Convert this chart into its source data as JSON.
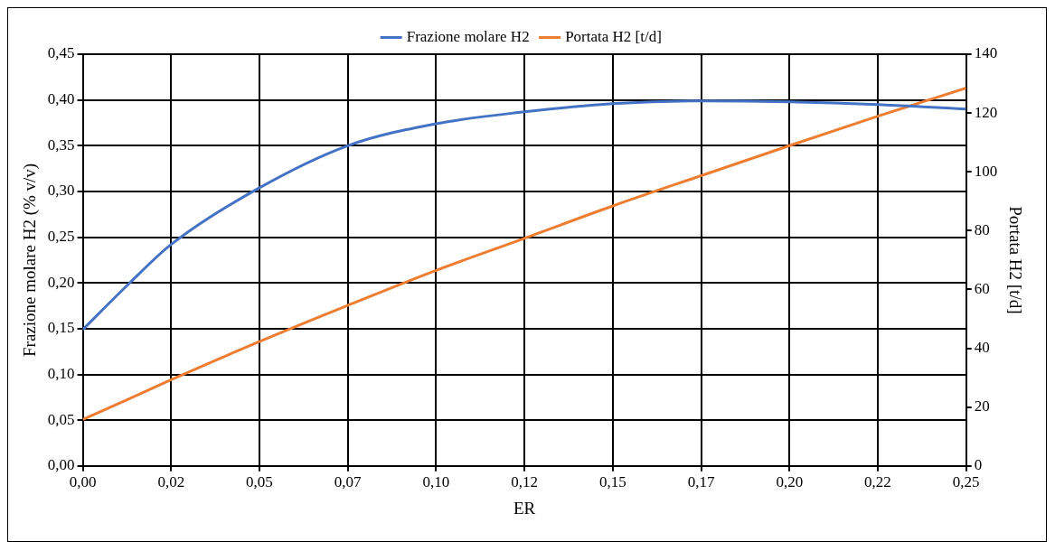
{
  "chart_data": {
    "type": "line",
    "xlabel": "ER",
    "ylabel": "Frazione molare H2 (% v/v)",
    "y2label": "Portata H2 [t/d]",
    "x": [
      0,
      0.0125,
      0.025,
      0.05,
      0.075,
      0.1,
      0.125,
      0.15,
      0.175,
      0.2,
      0.225,
      0.25
    ],
    "series": [
      {
        "name": "Frazione molare H2",
        "color": "#4472c4",
        "values": [
          0.149,
          0.197,
          0.242,
          0.304,
          0.35,
          0.374,
          0.387,
          0.396,
          0.399,
          0.398,
          0.395,
          0.39
        ]
      },
      {
        "name": "Portata H2 [t/d]",
        "color": "#ed7d31",
        "axis": "y2",
        "values": [
          15.8,
          22.5,
          29.3,
          42.3,
          54.6,
          66.5,
          77.4,
          88.4,
          98.7,
          108.9,
          118.9,
          128.5
        ]
      }
    ],
    "xlim": [
      0,
      0.25
    ],
    "xticks": [
      {
        "value": 0,
        "label": "0,00"
      },
      {
        "value": 0.025,
        "label": "0,02"
      },
      {
        "value": 0.05,
        "label": "0,05"
      },
      {
        "value": 0.075,
        "label": "0,07"
      },
      {
        "value": 0.1,
        "label": "0,10"
      },
      {
        "value": 0.125,
        "label": "0,12"
      },
      {
        "value": 0.15,
        "label": "0,15"
      },
      {
        "value": 0.175,
        "label": "0,17"
      },
      {
        "value": 0.2,
        "label": "0,20"
      },
      {
        "value": 0.225,
        "label": "0,22"
      },
      {
        "value": 0.25,
        "label": "0,25"
      }
    ],
    "ylim": [
      0,
      0.45
    ],
    "yticks": [
      {
        "value": 0,
        "label": "0,00"
      },
      {
        "value": 0.05,
        "label": "0,05"
      },
      {
        "value": 0.1,
        "label": "0,10"
      },
      {
        "value": 0.15,
        "label": "0,15"
      },
      {
        "value": 0.2,
        "label": "0,20"
      },
      {
        "value": 0.25,
        "label": "0,25"
      },
      {
        "value": 0.3,
        "label": "0,30"
      },
      {
        "value": 0.35,
        "label": "0,35"
      },
      {
        "value": 0.4,
        "label": "0,40"
      },
      {
        "value": 0.45,
        "label": "0,45"
      }
    ],
    "y2lim": [
      0,
      140
    ],
    "y2ticks": [
      0,
      20,
      40,
      60,
      80,
      100,
      120,
      140
    ],
    "grid": true,
    "legend": "top",
    "marker": "none",
    "line_style": "solid"
  }
}
